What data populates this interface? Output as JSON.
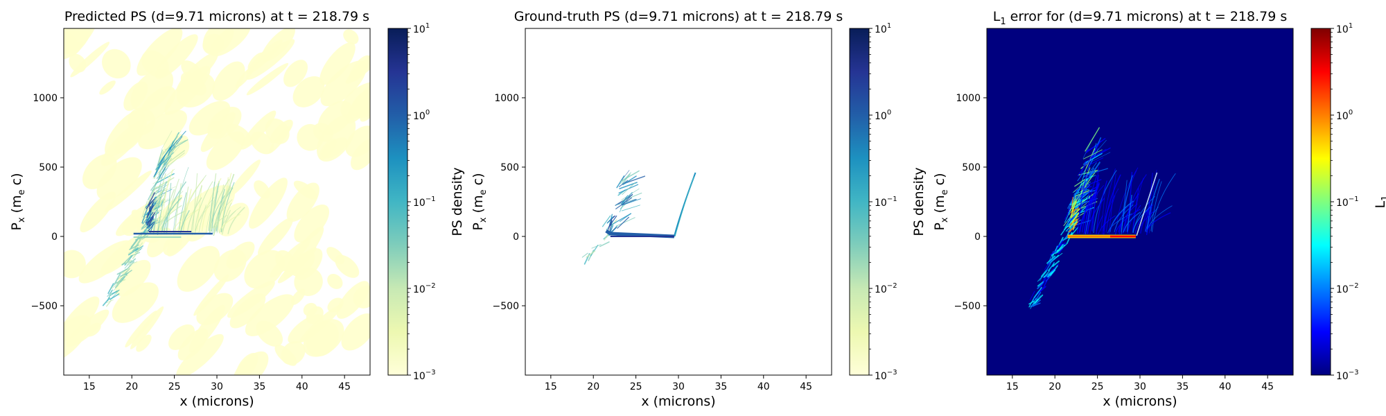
{
  "colors": {
    "ylgnbu": [
      "#ffffd9",
      "#edf8b1",
      "#c7e9b4",
      "#7fcdbb",
      "#41b6c4",
      "#1d91c0",
      "#225ea8",
      "#253494",
      "#081d58"
    ],
    "jet": [
      "#00007f",
      "#0000ff",
      "#007fff",
      "#00ffff",
      "#7fff7f",
      "#ffff00",
      "#ff7f00",
      "#ff0000",
      "#7f0000"
    ],
    "jet_background": "#00007f"
  },
  "chart_data": [
    {
      "type": "heatmap",
      "title": "Predicted PS (d=9.71 microns) at t = 218.79 s",
      "xlabel": "x (microns)",
      "ylabel": "P",
      "ylabel_sub": "x",
      "ylabel_rest": " (m",
      "ylabel_sub2": "e",
      "ylabel_end": " c)",
      "xlim": [
        12,
        48
      ],
      "ylim": [
        -1000,
        1500
      ],
      "xticks": [
        "15",
        "20",
        "25",
        "30",
        "35",
        "40",
        "45"
      ],
      "yticks": [
        "−500",
        "0",
        "500",
        "1000"
      ],
      "colormap": "ylgnbu",
      "colorbar_label": "PS density",
      "colorbar_ticks": [
        {
          "base": "10",
          "exp": "1"
        },
        {
          "base": "10",
          "exp": "0"
        },
        {
          "base": "10",
          "exp": "−1"
        },
        {
          "base": "10",
          "exp": "−2"
        },
        {
          "base": "10",
          "exp": "−3"
        }
      ],
      "colorbar_range": [
        -3,
        1
      ],
      "background_noise": true,
      "features": {
        "line_segment": {
          "x": [
            20.2,
            29.5
          ],
          "y": 5
        },
        "left_branch": {
          "x": [
            17.0,
            22.0
          ],
          "y": [
            -480,
            100
          ]
        },
        "upper_branch": {
          "x": [
            21.0,
            26.0
          ],
          "y": [
            50,
            780
          ]
        },
        "right_fan": {
          "x": [
            24.0,
            32.0
          ],
          "y": [
            0,
            450
          ]
        }
      }
    },
    {
      "type": "heatmap",
      "title": "Ground-truth PS (d=9.71 microns) at t = 218.79 s",
      "xlabel": "x (microns)",
      "ylabel": "P",
      "ylabel_sub": "x",
      "ylabel_rest": " (m",
      "ylabel_sub2": "e",
      "ylabel_end": " c)",
      "xlim": [
        12,
        48
      ],
      "ylim": [
        -1000,
        1500
      ],
      "xticks": [
        "15",
        "20",
        "25",
        "30",
        "35",
        "40",
        "45"
      ],
      "yticks": [
        "−500",
        "0",
        "500",
        "1000"
      ],
      "colormap": "ylgnbu",
      "colorbar_label": "PS density",
      "colorbar_ticks": [
        {
          "base": "10",
          "exp": "1"
        },
        {
          "base": "10",
          "exp": "0"
        },
        {
          "base": "10",
          "exp": "−1"
        },
        {
          "base": "10",
          "exp": "−2"
        },
        {
          "base": "10",
          "exp": "−3"
        }
      ],
      "colorbar_range": [
        -3,
        1
      ],
      "background_noise": false,
      "features": {
        "line_segment": {
          "x": [
            21.5,
            29.5
          ],
          "y": 0
        },
        "left_branch": {
          "x": [
            19.0,
            22.0
          ],
          "y": [
            -180,
            90
          ]
        },
        "upper_branch": {
          "x": [
            22.0,
            24.0
          ],
          "y": [
            50,
            400
          ]
        },
        "right_curve": {
          "x": [
            29.5,
            32.0
          ],
          "y": [
            0,
            460
          ]
        }
      }
    },
    {
      "type": "heatmap",
      "title": "L",
      "title_sub": "1",
      "title_rest": " error for (d=9.71 microns) at t = 218.79 s",
      "xlabel": "x (microns)",
      "ylabel": "P",
      "ylabel_sub": "x",
      "ylabel_rest": " (m",
      "ylabel_sub2": "e",
      "ylabel_end": " c)",
      "xlim": [
        12,
        48
      ],
      "ylim": [
        -1000,
        1500
      ],
      "xticks": [
        "15",
        "20",
        "25",
        "30",
        "35",
        "40",
        "45"
      ],
      "yticks": [
        "−500",
        "0",
        "500",
        "1000"
      ],
      "colormap": "jet",
      "colorbar_label": "L",
      "colorbar_label_sub": "1",
      "colorbar_ticks": [
        {
          "base": "10",
          "exp": "1"
        },
        {
          "base": "10",
          "exp": "0"
        },
        {
          "base": "10",
          "exp": "−1"
        },
        {
          "base": "10",
          "exp": "−2"
        },
        {
          "base": "10",
          "exp": "−3"
        }
      ],
      "colorbar_range": [
        -3,
        1
      ],
      "background_noise": false,
      "features": {
        "line_segment": {
          "x": [
            21.5,
            29.5
          ],
          "y": 0
        },
        "left_branch": {
          "x": [
            17.0,
            22.0
          ],
          "y": [
            -520,
            100
          ]
        },
        "upper_branch": {
          "x": [
            21.0,
            26.0
          ],
          "y": [
            50,
            760
          ]
        },
        "right_fan": {
          "x": [
            24.0,
            32.0
          ],
          "y": [
            0,
            460
          ]
        }
      }
    }
  ]
}
